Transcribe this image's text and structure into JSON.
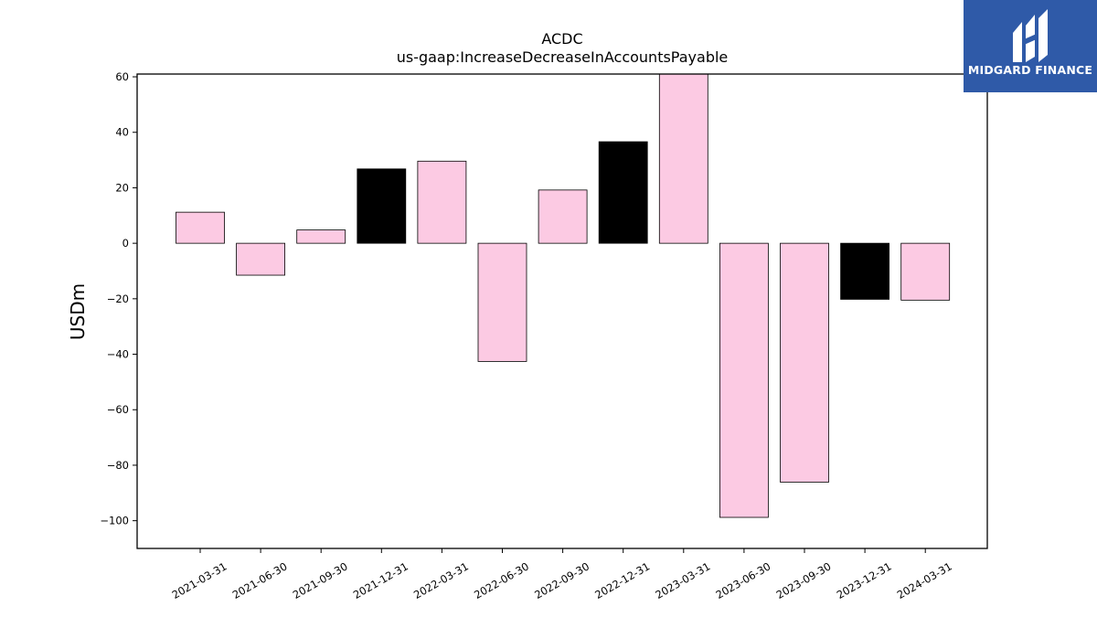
{
  "logo": {
    "text": "MIDGARD FINANCE"
  },
  "chart_data": {
    "type": "bar",
    "title": "ACDC",
    "subtitle": "us-gaap:IncreaseDecreaseInAccountsPayable",
    "xlabel": "",
    "ylabel": "USDm",
    "ylim": [
      -110,
      61
    ],
    "yticks": [
      60,
      40,
      20,
      0,
      -20,
      -40,
      -60,
      -80,
      -100
    ],
    "ytick_labels": [
      "60",
      "40",
      "20",
      "0",
      "−20",
      "−40",
      "−60",
      "−80",
      "−100"
    ],
    "grid": false,
    "categories": [
      "2021-03-31",
      "2021-06-30",
      "2021-09-30",
      "2021-12-31",
      "2022-03-31",
      "2022-06-30",
      "2022-09-30",
      "2022-12-31",
      "2023-03-31",
      "2023-06-30",
      "2023-09-30",
      "2023-12-31",
      "2024-03-31"
    ],
    "values": [
      11.2,
      -11.5,
      4.8,
      26.8,
      29.6,
      -42.6,
      19.2,
      36.6,
      61.0,
      -98.8,
      -86.1,
      -20.2,
      -20.5
    ],
    "colors": [
      "#fccae3",
      "#fccae3",
      "#fccae3",
      "#000000",
      "#fccae3",
      "#fccae3",
      "#fccae3",
      "#000000",
      "#fccae3",
      "#fccae3",
      "#fccae3",
      "#000000",
      "#fccae3"
    ]
  }
}
